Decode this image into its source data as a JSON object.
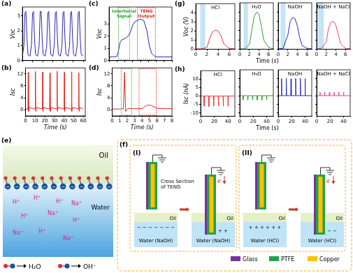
{
  "chart_data": [
    {
      "panel": "(a)",
      "type": "line",
      "ylabel": "Voc",
      "color": "#2525b4",
      "x": [
        0,
        1.5,
        2.5,
        3.5,
        4.5,
        5.5,
        7.5,
        9,
        10,
        11,
        12,
        13,
        15,
        16.5,
        17.5,
        18.5,
        19.5,
        20.5,
        22.5,
        24,
        25,
        26,
        27,
        28,
        30,
        31.5,
        32.5,
        33.5,
        34.5,
        35.5,
        37.5,
        39,
        40,
        41,
        42,
        43,
        45,
        46.5,
        47.5,
        48.5,
        49.5,
        50.5,
        52.5,
        54,
        55,
        56,
        57,
        58,
        60
      ],
      "values": [
        0.3,
        1.0,
        3.2,
        3.3,
        1.5,
        0.4,
        0.3,
        1.1,
        3.2,
        3.3,
        1.4,
        0.4,
        0.3,
        1.0,
        3.3,
        3.3,
        1.5,
        0.4,
        0.3,
        1.0,
        3.2,
        3.3,
        1.5,
        0.4,
        0.3,
        1.1,
        3.2,
        3.3,
        1.5,
        0.4,
        0.3,
        1.0,
        3.2,
        3.3,
        1.4,
        0.4,
        0.3,
        1.0,
        3.2,
        3.3,
        1.5,
        0.4,
        0.3,
        1.0,
        3.2,
        3.3,
        1.5,
        0.4,
        0.3
      ],
      "xlim": [
        0,
        62
      ],
      "xticks": [
        0,
        10,
        20,
        30,
        40,
        50,
        60
      ],
      "ylim": [
        0,
        3.6
      ],
      "yticks": [
        0,
        1,
        2,
        3
      ],
      "tick_labels": "y"
    },
    {
      "panel": "(b)",
      "type": "line",
      "ylabel": "Isc",
      "xlabel": "Time (s)",
      "color": "#e3241b",
      "x": [
        0,
        2.5,
        2.8,
        3.1,
        3.8,
        10,
        10.3,
        10.6,
        11.3,
        17.5,
        17.8,
        18.1,
        18.8,
        25,
        25.3,
        25.6,
        26.3,
        32.5,
        32.8,
        33.1,
        33.8,
        40,
        40.3,
        40.6,
        41.3,
        47.5,
        47.8,
        48.1,
        48.8,
        55,
        55.3,
        55.6,
        56.3,
        60
      ],
      "values": [
        0.3,
        0.3,
        12.5,
        -0.5,
        0.8,
        0.3,
        12.8,
        -0.5,
        0.8,
        0.3,
        12.6,
        -0.5,
        0.8,
        0.3,
        12.3,
        -0.5,
        0.8,
        0.3,
        12.9,
        -0.5,
        0.8,
        0.3,
        12.5,
        -0.5,
        0.8,
        0.3,
        12.7,
        -0.5,
        0.8,
        0.3,
        12.4,
        -0.5,
        0.8,
        0.3
      ],
      "xlim": [
        0,
        62
      ],
      "xticks": [
        0,
        10,
        20,
        30,
        40,
        50,
        60
      ],
      "ylim": [
        -2,
        14
      ],
      "yticks": [
        0,
        4,
        8,
        12
      ]
    },
    {
      "panel": "(c)",
      "type": "line",
      "ylabel": "Voc",
      "color": "#2525b4",
      "x": [
        0,
        0.5,
        1,
        1.2,
        1.4,
        1.6,
        2,
        2.4,
        2.7,
        3,
        3.3,
        3.6,
        4,
        4.4,
        4.8,
        5.1,
        5.4,
        5.8,
        6.2,
        7,
        8
      ],
      "values": [
        0.3,
        0.3,
        0.35,
        0.8,
        1.5,
        1.7,
        1.8,
        2.0,
        2.3,
        2.9,
        3.2,
        3.3,
        3.4,
        3.3,
        2.5,
        1.3,
        0.6,
        0.35,
        0.3,
        0.3,
        0.3
      ],
      "xlim": [
        0,
        8
      ],
      "xticks": [
        0,
        1,
        2,
        3,
        4,
        5,
        6,
        7,
        8
      ],
      "ylim": [
        0,
        4.4
      ],
      "yticks": [
        0,
        1,
        2,
        3
      ],
      "tick_labels": "y",
      "boxes": [
        {
          "text": "Interfacial Signal",
          "color": "#2ca02c",
          "x": [
            1.2,
            2.6
          ]
        },
        {
          "text": "TENG Output",
          "color": "#e3241b",
          "x": [
            3.6,
            5.9
          ]
        }
      ]
    },
    {
      "panel": "(d)",
      "type": "line",
      "ylabel": "Isc",
      "xlabel": "Time (s)",
      "color": "#e3241b",
      "x": [
        0,
        1,
        1.5,
        1.65,
        1.8,
        2.1,
        3,
        4,
        4.3,
        4.7,
        5.2,
        5.6,
        6,
        7,
        8
      ],
      "values": [
        0.3,
        0.3,
        0.4,
        12.5,
        -0.5,
        0.5,
        0.4,
        0.4,
        1.0,
        1.6,
        1.5,
        1.0,
        0.5,
        0.4,
        0.4
      ],
      "xlim": [
        0,
        8
      ],
      "xticks": [
        0,
        1,
        2,
        3,
        4,
        5,
        6,
        7,
        8
      ],
      "ylim": [
        -2,
        14
      ],
      "yticks": [
        0,
        4,
        8,
        12
      ],
      "boxes": [
        {
          "color": "#2ca02c",
          "x": [
            1.2,
            2.6
          ]
        },
        {
          "color": "#e3241b",
          "x": [
            3.6,
            5.9
          ]
        }
      ]
    },
    {
      "panel": "(g)",
      "type": "line",
      "ylabel": "Voc (V)",
      "xlabel": "Time (s)",
      "x": [
        0,
        1,
        2,
        2.5,
        3,
        3.5,
        4,
        4.5,
        5,
        6,
        7
      ],
      "xlim": [
        0,
        7
      ],
      "xticks": [
        0,
        2,
        4,
        6
      ],
      "ylim": [
        0,
        5
      ],
      "yticks": [
        0,
        1,
        2,
        3,
        4
      ],
      "subplots": [
        {
          "title": "HCl",
          "color": "#e8383c",
          "values": [
            0.05,
            0.05,
            0.2,
            1.2,
            1.9,
            2.1,
            2.0,
            1.5,
            0.6,
            0.1,
            0.05
          ],
          "shade": [
            0.8,
            1.7
          ]
        },
        {
          "title": "H₂O",
          "color": "#2ca02c",
          "values": [
            0.05,
            0.05,
            0.5,
            2.0,
            3.5,
            4.0,
            3.8,
            2.5,
            1.0,
            0.2,
            0.05
          ],
          "shade": [
            0.8,
            1.7
          ],
          "tick_labels": "x"
        },
        {
          "title": "NaOH",
          "color": "#2929c8",
          "values": [
            0.05,
            0.1,
            1.5,
            3.0,
            3.4,
            3.3,
            2.5,
            1.2,
            0.4,
            0.1,
            0.05
          ],
          "shade": [
            0.5,
            1.5
          ],
          "tick_labels": "x"
        },
        {
          "title": "NaOH + NaCl",
          "color": "#e0409a",
          "values": [
            0.05,
            0.1,
            0.8,
            2.3,
            2.9,
            3.0,
            2.6,
            1.6,
            0.6,
            0.1,
            0.05
          ],
          "shade": [
            0.3,
            1.5
          ],
          "tick_labels": "x"
        }
      ]
    },
    {
      "panel": "(h)",
      "type": "line",
      "ylabel": "Isc (nA)",
      "xlabel": "Time (s)",
      "x": [
        0,
        4.7,
        5,
        5.5,
        11.7,
        12,
        12.5,
        18.7,
        19,
        19.5,
        25.7,
        26,
        26.5,
        32.7,
        33,
        33.5,
        39.7,
        40,
        40.5,
        50
      ],
      "xlim": [
        0,
        50
      ],
      "xticks": [
        0,
        20,
        40
      ],
      "ylim": [
        -12,
        15
      ],
      "yticks": [
        -10,
        -5,
        0,
        5,
        10
      ],
      "subplots": [
        {
          "title": "HCl",
          "color": "#e8383c",
          "values": [
            0,
            0,
            -6,
            0,
            0,
            -6.2,
            0,
            0,
            -6,
            0,
            0,
            -5.9,
            0,
            0,
            -6.1,
            0,
            0,
            -6,
            0,
            0
          ]
        },
        {
          "title": "H₂O",
          "color": "#2ca02c",
          "values": [
            0,
            0,
            -2.5,
            0,
            0,
            -2.6,
            0,
            0,
            -2.4,
            0,
            0,
            -2.5,
            0,
            0,
            -2.6,
            0,
            0,
            -2.5,
            0,
            0
          ],
          "tick_labels": "x"
        },
        {
          "title": "NaOH",
          "color": "#2929c8",
          "values": [
            0,
            0,
            10,
            0,
            0,
            10.2,
            0,
            0,
            9.8,
            0,
            0,
            10,
            0,
            0,
            10.1,
            0,
            0,
            9.9,
            0,
            0
          ],
          "tick_labels": "x"
        },
        {
          "title": "NaOH + NaCl",
          "color": "#e0409a",
          "values": [
            0,
            0,
            2,
            0,
            0,
            2.1,
            0,
            0,
            1.9,
            0,
            0,
            2,
            0,
            0,
            2.1,
            0,
            0,
            2,
            0,
            0
          ],
          "tick_labels": "x"
        }
      ]
    }
  ],
  "diagram_e": {
    "panel": "(e)",
    "oil": "Oil",
    "water": "Water",
    "surface_charge": "−",
    "ions": [
      "H⁺",
      "H⁺",
      "H⁺",
      "Na⁺",
      "H⁺",
      "Na⁺",
      "H⁺",
      "Na⁺",
      "H⁺",
      "Na⁺"
    ],
    "products": [
      "H₂O",
      "OH⁻"
    ]
  },
  "diagram_f": {
    "panel": "(f)",
    "caption": "Cross Section of TENG",
    "steps": [
      {
        "label": "(I)",
        "oil": "Oil",
        "liquid": "Water (NaOH)",
        "interface_charges": "− − − − − − −",
        "device_charges": "+ +",
        "electron": "e"
      },
      {
        "label": "(II)",
        "oil": "Oil",
        "liquid": "Water (HCl)",
        "interface_charges": "+ + + + + +",
        "device_charges": "− −",
        "electron": "e"
      }
    ],
    "legend": [
      {
        "text": "Glass",
        "color": "#7b2fa0"
      },
      {
        "text": "PTFE",
        "color": "#1fa34a"
      },
      {
        "text": "Copper",
        "color": "#ffc000"
      }
    ]
  }
}
